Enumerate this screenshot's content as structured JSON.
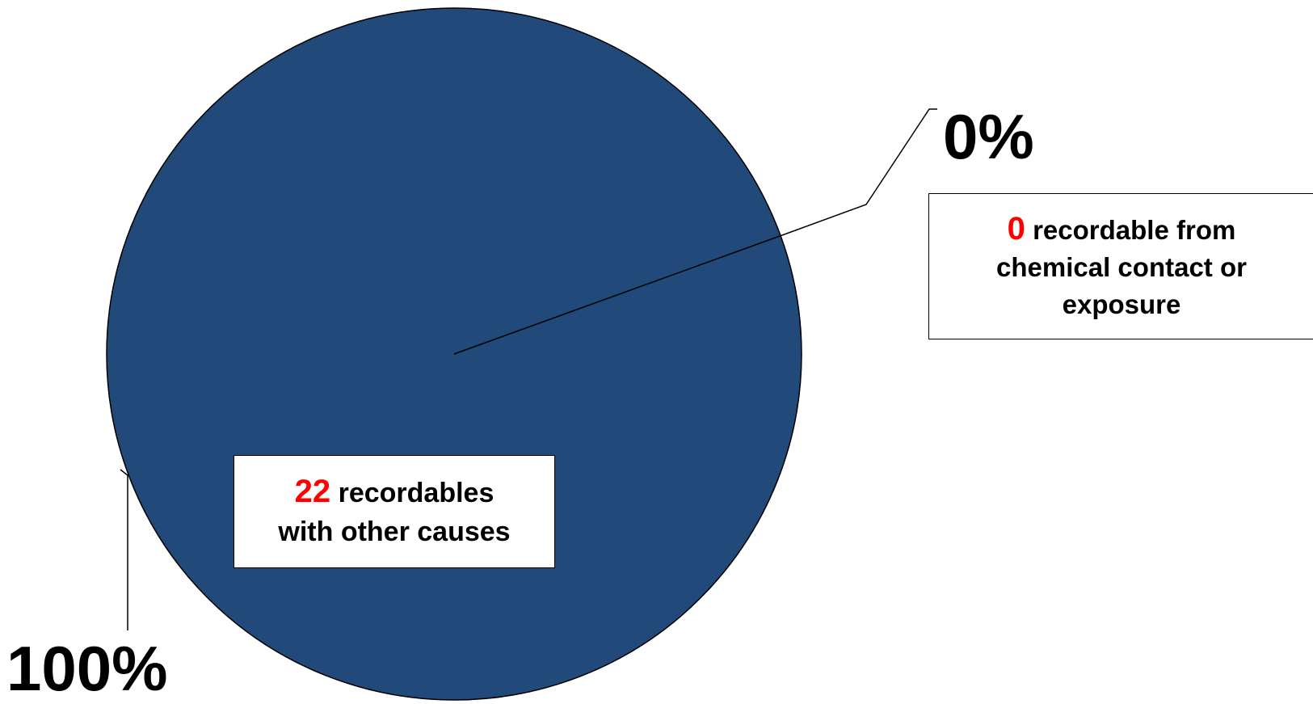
{
  "chart_data": {
    "type": "pie",
    "title": "",
    "slices": [
      {
        "count": 22,
        "count_text": "22",
        "description": "recordables with other causes",
        "desc_line1": "recordables",
        "desc_line2": "with other causes",
        "percent": 100,
        "percent_label": "100%",
        "color": "#21497a"
      },
      {
        "count": 0,
        "count_text": "0",
        "description": "recordable from chemical contact or exposure",
        "desc_line1": "recordable from",
        "desc_line2": "chemical contact or",
        "desc_line3": "exposure",
        "percent": 0,
        "percent_label": "0%",
        "color": "#21497a"
      }
    ],
    "count_color": "#ff0000",
    "legend": "none"
  }
}
